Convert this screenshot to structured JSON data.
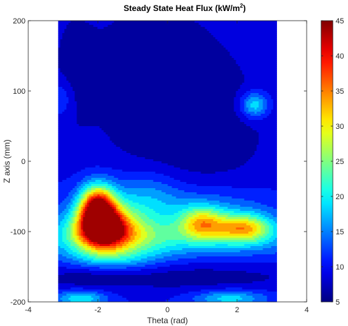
{
  "chart_data": {
    "type": "heatmap",
    "title": "Steady State Heat Flux (kW/m",
    "title_superscript": "2",
    "title_suffix": ")",
    "xlabel": "Theta (rad)",
    "ylabel": "Z axis (mm)",
    "xlim": [
      -4,
      4
    ],
    "ylim": [
      -200,
      200
    ],
    "x_ticks": [
      "-4",
      "-2",
      "0",
      "2",
      "4"
    ],
    "y_ticks": [
      "200",
      "100",
      "0",
      "-100",
      "-200"
    ],
    "data_x_range": [
      -3.14,
      3.14
    ],
    "colorbar": {
      "range": [
        5,
        45
      ],
      "ticks": [
        "45",
        "40",
        "35",
        "30",
        "25",
        "20",
        "15",
        "10",
        "5"
      ],
      "colormap": "jet"
    },
    "contour_levels": [
      5,
      7.5,
      10,
      12.5,
      15,
      17.5,
      20,
      22.5,
      25,
      27.5,
      30,
      32.5,
      35,
      37.5,
      40,
      42.5
    ],
    "background": 10,
    "features": [
      {
        "theta": -2.0,
        "z": -65,
        "amp": 30,
        "s_theta": 0.35,
        "s_z": 22
      },
      {
        "theta": -1.85,
        "z": -95,
        "amp": 26,
        "s_theta": 0.5,
        "s_z": 20
      },
      {
        "theta": -1.6,
        "z": -100,
        "amp": 14,
        "s_theta": 1.0,
        "s_z": 30
      },
      {
        "theta": 1.0,
        "z": -88,
        "amp": 16,
        "s_theta": 0.45,
        "s_z": 16
      },
      {
        "theta": 2.2,
        "z": -95,
        "amp": 18,
        "s_theta": 0.55,
        "s_z": 14
      },
      {
        "theta": 1.1,
        "z": -70,
        "amp": 6,
        "s_theta": 1.4,
        "s_z": 25
      },
      {
        "theta": 0.3,
        "z": -110,
        "amp": 8,
        "s_theta": 2.8,
        "s_z": 18
      },
      {
        "theta": -0.6,
        "z": -45,
        "amp": 5,
        "s_theta": 0.7,
        "s_z": 25
      },
      {
        "theta": 0.8,
        "z": 40,
        "amp": -4,
        "s_theta": 1.8,
        "s_z": 80
      },
      {
        "theta": -0.5,
        "z": 140,
        "amp": -4,
        "s_theta": 1.5,
        "s_z": 70
      },
      {
        "theta": -2.7,
        "z": 130,
        "amp": -3,
        "s_theta": 0.4,
        "s_z": 60
      },
      {
        "theta": 2.5,
        "z": 80,
        "amp": 11,
        "s_theta": 0.28,
        "s_z": 13
      },
      {
        "theta": -3.0,
        "z": 90,
        "amp": 4,
        "s_theta": 0.25,
        "s_z": 20
      },
      {
        "theta": 0.0,
        "z": -165,
        "amp": -4,
        "s_theta": 3.0,
        "s_z": 14
      },
      {
        "theta": -2.2,
        "z": -165,
        "amp": -2,
        "s_theta": 0.8,
        "s_z": 12
      },
      {
        "theta": -2.5,
        "z": -195,
        "amp": 10,
        "s_theta": 0.5,
        "s_z": 8
      },
      {
        "theta": 1.8,
        "z": -195,
        "amp": 9,
        "s_theta": 0.7,
        "s_z": 8
      },
      {
        "theta": -1.5,
        "z": -140,
        "amp": 3,
        "s_theta": 0.9,
        "s_z": 12
      }
    ]
  }
}
